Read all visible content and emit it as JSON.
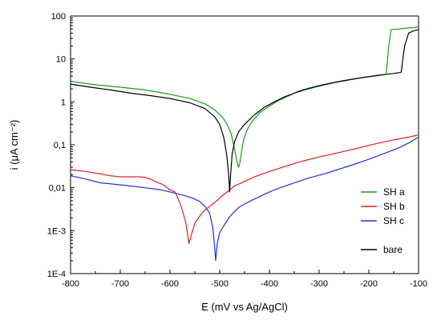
{
  "chart_data": {
    "type": "line",
    "xlabel": "E (mV vs Ag/AgCl)",
    "ylabel": "i (μA cm⁻²)",
    "xlim": [
      -800,
      -100
    ],
    "ylim": [
      0.0001,
      100
    ],
    "yscale": "log",
    "x_ticks": [
      -800,
      -700,
      -600,
      -500,
      -400,
      -300,
      -200,
      -100
    ],
    "x_tick_labels": [
      "-800",
      "-700",
      "-600",
      "-500",
      "-400",
      "-300",
      "-200",
      "-100"
    ],
    "y_ticks": [
      0.0001,
      0.001,
      0.01,
      0.1,
      1,
      10,
      100
    ],
    "y_tick_labels": [
      "1E-4",
      "1E-3",
      "0,01",
      "0,1",
      "1",
      "10",
      "100"
    ],
    "grid": false,
    "legend_position": "right",
    "series": [
      {
        "name": "SH a",
        "color": "#1a9a1a",
        "points": [
          [
            -800,
            3.0
          ],
          [
            -750,
            2.5
          ],
          [
            -700,
            2.2
          ],
          [
            -650,
            1.9
          ],
          [
            -600,
            1.5
          ],
          [
            -560,
            1.2
          ],
          [
            -530,
            0.9
          ],
          [
            -510,
            0.65
          ],
          [
            -495,
            0.45
          ],
          [
            -485,
            0.3
          ],
          [
            -477,
            0.18
          ],
          [
            -472,
            0.1
          ],
          [
            -468,
            0.06
          ],
          [
            -465,
            0.04
          ],
          [
            -462,
            0.03
          ],
          [
            -459,
            0.04
          ],
          [
            -456,
            0.07
          ],
          [
            -452,
            0.13
          ],
          [
            -445,
            0.22
          ],
          [
            -435,
            0.35
          ],
          [
            -420,
            0.55
          ],
          [
            -400,
            0.8
          ],
          [
            -380,
            1.1
          ],
          [
            -360,
            1.4
          ],
          [
            -340,
            1.8
          ],
          [
            -320,
            2.1
          ],
          [
            -300,
            2.4
          ],
          [
            -280,
            2.7
          ],
          [
            -260,
            3.0
          ],
          [
            -240,
            3.3
          ],
          [
            -220,
            3.6
          ],
          [
            -200,
            3.9
          ],
          [
            -180,
            4.2
          ],
          [
            -165,
            4.4
          ],
          [
            -160,
            20
          ],
          [
            -155,
            48
          ],
          [
            -140,
            50
          ],
          [
            -120,
            53
          ],
          [
            -100,
            55
          ]
        ]
      },
      {
        "name": "SH b",
        "color": "#e02020",
        "points": [
          [
            -800,
            0.026
          ],
          [
            -780,
            0.025
          ],
          [
            -760,
            0.023
          ],
          [
            -740,
            0.021
          ],
          [
            -720,
            0.019
          ],
          [
            -700,
            0.018
          ],
          [
            -680,
            0.018
          ],
          [
            -660,
            0.018
          ],
          [
            -645,
            0.017
          ],
          [
            -630,
            0.014
          ],
          [
            -615,
            0.012
          ],
          [
            -600,
            0.009
          ],
          [
            -590,
            0.008
          ],
          [
            -582,
            0.005
          ],
          [
            -575,
            0.003
          ],
          [
            -568,
            0.0015
          ],
          [
            -562,
            0.0005
          ],
          [
            -557,
            0.0008
          ],
          [
            -550,
            0.0015
          ],
          [
            -540,
            0.0022
          ],
          [
            -530,
            0.003
          ],
          [
            -520,
            0.0037
          ],
          [
            -510,
            0.0045
          ],
          [
            -500,
            0.0058
          ],
          [
            -485,
            0.008
          ],
          [
            -470,
            0.011
          ],
          [
            -450,
            0.014
          ],
          [
            -430,
            0.018
          ],
          [
            -400,
            0.024
          ],
          [
            -370,
            0.031
          ],
          [
            -340,
            0.04
          ],
          [
            -300,
            0.052
          ],
          [
            -260,
            0.066
          ],
          [
            -220,
            0.085
          ],
          [
            -180,
            0.11
          ],
          [
            -150,
            0.13
          ],
          [
            -120,
            0.15
          ],
          [
            -100,
            0.17
          ]
        ]
      },
      {
        "name": "SH c",
        "color": "#2030e0",
        "points": [
          [
            -800,
            0.019
          ],
          [
            -770,
            0.016
          ],
          [
            -740,
            0.013
          ],
          [
            -710,
            0.012
          ],
          [
            -680,
            0.011
          ],
          [
            -650,
            0.01
          ],
          [
            -620,
            0.009
          ],
          [
            -590,
            0.0075
          ],
          [
            -570,
            0.0065
          ],
          [
            -555,
            0.0058
          ],
          [
            -540,
            0.0048
          ],
          [
            -528,
            0.0035
          ],
          [
            -520,
            0.0025
          ],
          [
            -514,
            0.0012
          ],
          [
            -510,
            0.0004
          ],
          [
            -508,
            0.0002
          ],
          [
            -505,
            0.0005
          ],
          [
            -500,
            0.0009
          ],
          [
            -490,
            0.0014
          ],
          [
            -480,
            0.0021
          ],
          [
            -470,
            0.0028
          ],
          [
            -460,
            0.0036
          ],
          [
            -440,
            0.0048
          ],
          [
            -420,
            0.0062
          ],
          [
            -400,
            0.008
          ],
          [
            -380,
            0.0098
          ],
          [
            -350,
            0.013
          ],
          [
            -320,
            0.017
          ],
          [
            -290,
            0.021
          ],
          [
            -260,
            0.027
          ],
          [
            -230,
            0.035
          ],
          [
            -200,
            0.046
          ],
          [
            -170,
            0.062
          ],
          [
            -140,
            0.085
          ],
          [
            -120,
            0.11
          ],
          [
            -100,
            0.15
          ]
        ]
      },
      {
        "name": "bare",
        "color": "#000000",
        "points": [
          [
            -800,
            2.6
          ],
          [
            -760,
            2.2
          ],
          [
            -720,
            1.9
          ],
          [
            -680,
            1.6
          ],
          [
            -640,
            1.4
          ],
          [
            -600,
            1.2
          ],
          [
            -560,
            0.95
          ],
          [
            -530,
            0.7
          ],
          [
            -510,
            0.45
          ],
          [
            -500,
            0.3
          ],
          [
            -492,
            0.15
          ],
          [
            -486,
            0.06
          ],
          [
            -482,
            0.02
          ],
          [
            -480,
            0.008
          ],
          [
            -478,
            0.02
          ],
          [
            -475,
            0.06
          ],
          [
            -470,
            0.12
          ],
          [
            -462,
            0.2
          ],
          [
            -450,
            0.3
          ],
          [
            -430,
            0.5
          ],
          [
            -410,
            0.75
          ],
          [
            -390,
            1.0
          ],
          [
            -370,
            1.3
          ],
          [
            -350,
            1.6
          ],
          [
            -330,
            1.9
          ],
          [
            -310,
            2.2
          ],
          [
            -290,
            2.5
          ],
          [
            -270,
            2.8
          ],
          [
            -250,
            3.1
          ],
          [
            -230,
            3.4
          ],
          [
            -210,
            3.7
          ],
          [
            -190,
            4.0
          ],
          [
            -170,
            4.3
          ],
          [
            -150,
            4.6
          ],
          [
            -135,
            4.9
          ],
          [
            -128,
            20
          ],
          [
            -120,
            40
          ],
          [
            -110,
            45
          ],
          [
            -100,
            48
          ]
        ]
      }
    ]
  }
}
